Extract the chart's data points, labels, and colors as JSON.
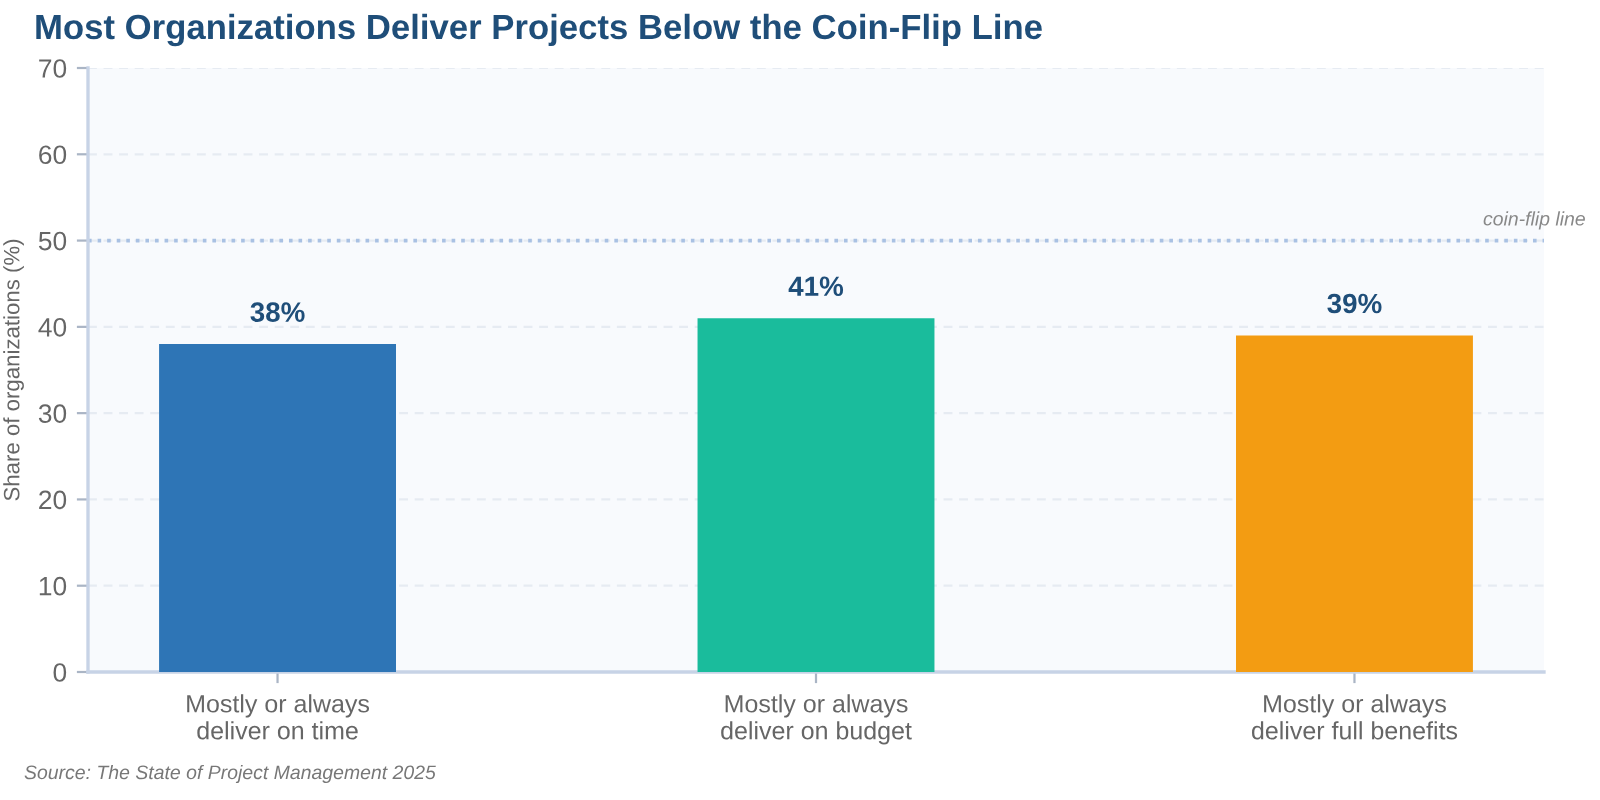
{
  "chart_data": {
    "type": "bar",
    "title": "Most Organizations Deliver Projects Below the Coin-Flip Line",
    "ylabel": "Share of organizations (%)",
    "categories": [
      "Mostly or always\ndeliver on time",
      "Mostly or always\ndeliver on budget",
      "Mostly or always\ndeliver full benefits"
    ],
    "values": [
      38,
      41,
      39
    ],
    "colors": [
      "#2e75b6",
      "#1abc9c",
      "#f39c12"
    ],
    "value_labels": [
      "38%",
      "41%",
      "39%"
    ],
    "ylim": [
      0,
      70
    ],
    "yticks": [
      0,
      10,
      20,
      30,
      40,
      50,
      60,
      70
    ],
    "grid": "y",
    "ref_lines": [
      {
        "axis": "y",
        "value": 50,
        "label": "coin-flip line",
        "color": "#a9c1e3",
        "line_style": "dotted"
      }
    ],
    "annotations": [
      "Source: The State of Project Management 2025"
    ]
  }
}
